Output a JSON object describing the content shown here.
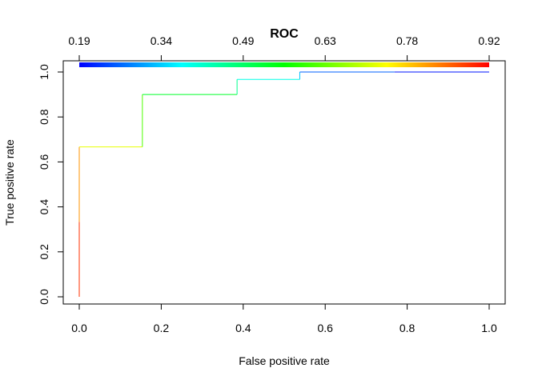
{
  "chart_data": {
    "type": "line",
    "title": "ROC",
    "xlabel": "False positive rate",
    "ylabel": "True positive rate",
    "xlim": [
      0,
      1
    ],
    "ylim": [
      0,
      1
    ],
    "x_ticks": [
      "0.0",
      "0.2",
      "0.4",
      "0.6",
      "0.8",
      "1.0"
    ],
    "y_ticks": [
      "0.0",
      "0.2",
      "0.4",
      "0.6",
      "0.8",
      "1.0"
    ],
    "top_axis_ticks": [
      "0.19",
      "0.34",
      "0.49",
      "0.63",
      "0.78",
      "0.92"
    ],
    "colorkey_range": [
      0.19,
      0.92
    ],
    "grid": false,
    "legend": "none",
    "series": [
      {
        "x": [
          0.0,
          0.0,
          0.0,
          0.154,
          0.154,
          0.385,
          0.385,
          0.538,
          0.538,
          0.769,
          1.0
        ],
        "y": [
          0.0,
          0.333,
          0.667,
          0.667,
          0.9,
          0.9,
          0.967,
          0.967,
          1.0,
          1.0,
          1.0
        ],
        "cutoff": [
          0.92,
          0.85,
          0.78,
          0.66,
          0.56,
          0.49,
          0.42,
          0.36,
          0.3,
          0.22,
          0.19
        ]
      }
    ],
    "colors": {
      "low": "#0000ff",
      "mid_low": "#00ffff",
      "mid": "#00ff00",
      "mid_high": "#ffff00",
      "high": "#ff0000"
    }
  }
}
